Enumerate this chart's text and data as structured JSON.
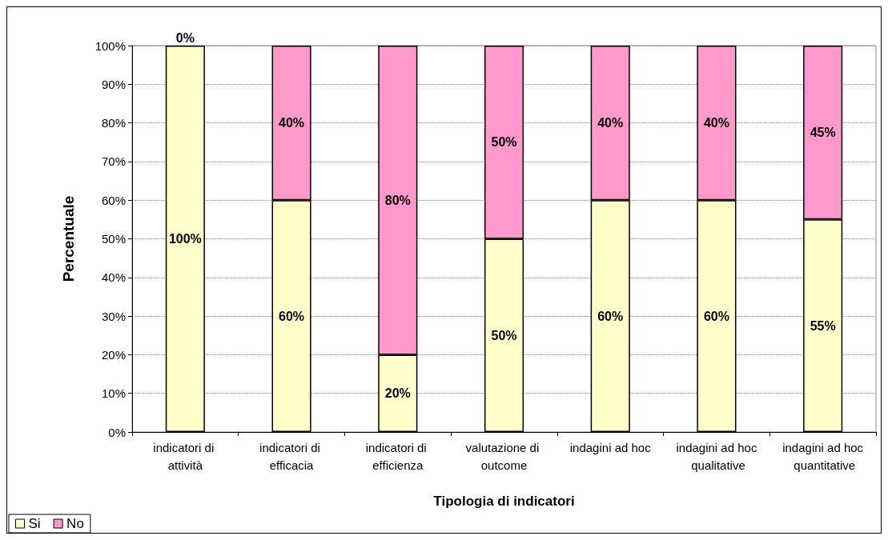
{
  "chart_data": {
    "type": "bar",
    "stacked": true,
    "xlabel": "Tipologia di indicatori",
    "ylabel": "Percentuale",
    "categories": [
      "indicatori di attività",
      "indicatori di efficacia",
      "indicatori di efficienza",
      "valutazione di outcome",
      "indagini ad hoc",
      "indagini ad hoc qualitative",
      "indagini ad hoc quantitative"
    ],
    "series": [
      {
        "name": "Si",
        "color": "#ffffcc",
        "values": [
          100,
          60,
          20,
          50,
          60,
          60,
          55
        ],
        "value_labels": [
          "100%",
          "60%",
          "20%",
          "50%",
          "60%",
          "60%",
          "55%"
        ]
      },
      {
        "name": "No",
        "color": "#ff99cc",
        "values": [
          0,
          40,
          80,
          50,
          40,
          40,
          45
        ],
        "value_labels": [
          "0%",
          "40%",
          "80%",
          "50%",
          "40%",
          "40%",
          "45%"
        ]
      }
    ],
    "ylim": [
      0,
      100
    ],
    "yticks": [
      {
        "value": 0,
        "label": "0%"
      },
      {
        "value": 10,
        "label": "10%"
      },
      {
        "value": 20,
        "label": "20%"
      },
      {
        "value": 30,
        "label": "30%"
      },
      {
        "value": 40,
        "label": "40%"
      },
      {
        "value": 50,
        "label": "50%"
      },
      {
        "value": 60,
        "label": "60%"
      },
      {
        "value": 70,
        "label": "70%"
      },
      {
        "value": 80,
        "label": "80%"
      },
      {
        "value": 90,
        "label": "90%"
      },
      {
        "value": 100,
        "label": "100%"
      }
    ],
    "grid": "y",
    "legend": "bottom left"
  }
}
